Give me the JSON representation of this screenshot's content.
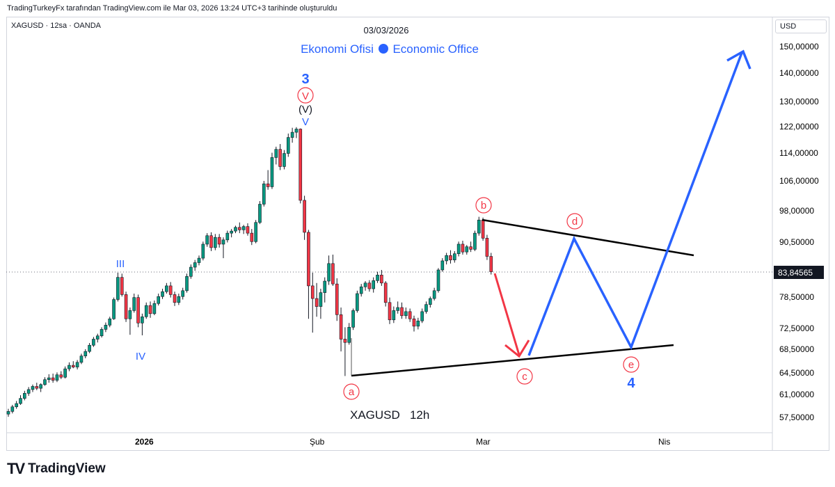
{
  "header": {
    "attribution": "TradingTurkeyFx tarafından TradingView.com ile Mar 03, 2026 13:24 UTC+3 tarihinde oluşturuldu",
    "symbol_line": "XAGUSD · 12sa · OANDA",
    "date": "03/03/2026",
    "brand_left": "Ekonomi Ofisi",
    "brand_right": "Economic Office"
  },
  "price_axis": {
    "currency": "USD",
    "ticks": [
      "150,00000",
      "140,00000",
      "130,00000",
      "122,00000",
      "114,00000",
      "106,00000",
      "98,00000",
      "90,50000",
      "78,50000",
      "72,50000",
      "68,50000",
      "64,50000",
      "61,00000",
      "57,50000"
    ],
    "current_price": "83,84565"
  },
  "time_axis": {
    "ticks": [
      "2026",
      "Şub",
      "Mar",
      "Nis"
    ]
  },
  "footer": {
    "logo_mark": "TV",
    "logo_text": "TradingView"
  },
  "chart_label": "XAGUSD   12h",
  "wave_labels": {
    "w3": "3",
    "w4": "4",
    "v_circle": "V",
    "v_paren": "(V)",
    "v_plain": "V",
    "iii": "III",
    "iv": "IV",
    "a": "a",
    "b": "b",
    "c": "c",
    "d": "d",
    "e": "e"
  },
  "colors": {
    "up": "#089981",
    "down": "#f23645",
    "projection_up": "#2962ff",
    "projection_down": "#f23645",
    "trendline": "#000000",
    "labels_blue": "#2962ff",
    "labels_red": "#f23645"
  },
  "chart_data": {
    "type": "candlestick",
    "symbol": "XAGUSD",
    "timeframe": "12h",
    "y_scale": "log",
    "ylim": [
      55.5,
      158
    ],
    "current_price": 83.84565,
    "ohlc": [
      [
        58.0,
        58.8,
        57.6,
        58.4
      ],
      [
        58.4,
        59.4,
        58.1,
        59.1
      ],
      [
        59.1,
        60.0,
        58.8,
        59.6
      ],
      [
        59.6,
        60.9,
        59.4,
        60.4
      ],
      [
        60.4,
        61.6,
        60.1,
        61.2
      ],
      [
        61.2,
        62.2,
        60.8,
        61.8
      ],
      [
        61.8,
        62.6,
        61.4,
        62.3
      ],
      [
        62.3,
        62.9,
        61.7,
        62.0
      ],
      [
        62.0,
        62.8,
        61.4,
        62.6
      ],
      [
        62.6,
        63.8,
        62.4,
        63.4
      ],
      [
        63.4,
        64.3,
        62.9,
        63.7
      ],
      [
        63.7,
        64.4,
        62.9,
        63.3
      ],
      [
        63.3,
        64.6,
        63.0,
        64.2
      ],
      [
        64.2,
        64.8,
        63.5,
        63.8
      ],
      [
        63.8,
        65.6,
        63.6,
        65.2
      ],
      [
        65.2,
        66.3,
        64.8,
        65.8
      ],
      [
        65.8,
        66.5,
        65.3,
        65.5
      ],
      [
        65.5,
        66.7,
        65.1,
        66.3
      ],
      [
        66.3,
        67.8,
        66.0,
        67.4
      ],
      [
        67.4,
        68.6,
        67.0,
        68.2
      ],
      [
        68.2,
        69.7,
        67.9,
        69.3
      ],
      [
        69.3,
        70.8,
        69.0,
        70.4
      ],
      [
        70.4,
        71.4,
        69.8,
        71.0
      ],
      [
        71.0,
        72.6,
        70.7,
        72.2
      ],
      [
        72.2,
        73.5,
        71.7,
        73.0
      ],
      [
        73.0,
        74.6,
        72.6,
        74.2
      ],
      [
        74.2,
        78.4,
        74.0,
        78.0
      ],
      [
        78.0,
        83.6,
        77.6,
        82.6
      ],
      [
        82.6,
        83.4,
        78.6,
        79.0
      ],
      [
        79.0,
        79.6,
        73.6,
        74.2
      ],
      [
        74.2,
        76.4,
        71.2,
        75.8
      ],
      [
        75.8,
        79.2,
        75.4,
        78.4
      ],
      [
        78.4,
        79.0,
        72.6,
        73.4
      ],
      [
        73.4,
        75.2,
        71.1,
        74.6
      ],
      [
        74.6,
        77.4,
        74.2,
        76.8
      ],
      [
        76.8,
        77.6,
        74.4,
        75.2
      ],
      [
        75.2,
        77.8,
        74.9,
        77.2
      ],
      [
        77.2,
        79.2,
        76.8,
        78.6
      ],
      [
        78.6,
        80.2,
        78.1,
        79.6
      ],
      [
        79.6,
        81.4,
        79.2,
        80.8
      ],
      [
        80.8,
        81.6,
        78.4,
        79.0
      ],
      [
        79.0,
        79.6,
        76.7,
        77.4
      ],
      [
        77.4,
        79.2,
        76.9,
        78.6
      ],
      [
        78.6,
        80.4,
        78.0,
        79.8
      ],
      [
        79.8,
        83.4,
        79.4,
        82.8
      ],
      [
        82.8,
        85.4,
        82.3,
        84.8
      ],
      [
        84.8,
        86.4,
        84.0,
        85.8
      ],
      [
        85.8,
        87.4,
        85.2,
        86.8
      ],
      [
        86.8,
        90.6,
        86.3,
        90.0
      ],
      [
        90.0,
        92.6,
        89.4,
        92.0
      ],
      [
        92.0,
        92.8,
        88.4,
        89.2
      ],
      [
        89.2,
        92.4,
        88.6,
        91.6
      ],
      [
        91.6,
        92.4,
        89.2,
        90.0
      ],
      [
        90.0,
        91.6,
        86.8,
        91.0
      ],
      [
        91.0,
        93.2,
        90.4,
        92.6
      ],
      [
        92.6,
        93.6,
        91.6,
        93.1
      ],
      [
        93.1,
        94.4,
        92.6,
        94.0
      ],
      [
        94.0,
        95.2,
        92.6,
        93.4
      ],
      [
        93.4,
        94.6,
        92.4,
        94.2
      ],
      [
        94.2,
        95.0,
        92.0,
        92.6
      ],
      [
        92.6,
        93.6,
        89.8,
        90.6
      ],
      [
        90.6,
        95.8,
        90.2,
        95.2
      ],
      [
        95.2,
        100.6,
        94.8,
        99.8
      ],
      [
        99.8,
        106.0,
        99.2,
        105.2
      ],
      [
        105.2,
        109.0,
        103.6,
        104.4
      ],
      [
        104.4,
        114.0,
        103.8,
        112.6
      ],
      [
        112.6,
        115.8,
        110.6,
        115.0
      ],
      [
        115.0,
        116.6,
        109.0,
        110.0
      ],
      [
        110.0,
        114.8,
        109.2,
        113.8
      ],
      [
        113.8,
        119.8,
        112.8,
        118.6
      ],
      [
        118.6,
        121.6,
        117.0,
        120.2
      ],
      [
        120.2,
        121.8,
        118.4,
        121.2
      ],
      [
        121.2,
        121.4,
        100.0,
        100.8
      ],
      [
        100.8,
        102.0,
        91.0,
        92.8
      ],
      [
        92.8,
        93.4,
        74.2,
        80.8
      ],
      [
        80.8,
        83.6,
        71.6,
        78.2
      ],
      [
        78.2,
        81.4,
        74.6,
        76.6
      ],
      [
        76.6,
        80.2,
        74.2,
        79.4
      ],
      [
        79.4,
        82.6,
        77.4,
        81.8
      ],
      [
        81.8,
        87.4,
        81.0,
        85.6
      ],
      [
        85.6,
        87.6,
        80.8,
        81.2
      ],
      [
        81.2,
        82.4,
        73.8,
        75.0
      ],
      [
        75.0,
        76.4,
        68.2,
        70.4
      ],
      [
        70.4,
        72.6,
        64.0,
        69.8
      ],
      [
        69.8,
        73.4,
        69.4,
        72.6
      ],
      [
        72.6,
        76.2,
        72.1,
        75.8
      ],
      [
        75.8,
        79.8,
        75.4,
        79.2
      ],
      [
        79.2,
        81.2,
        78.6,
        80.6
      ],
      [
        80.6,
        81.8,
        79.8,
        81.4
      ],
      [
        81.4,
        82.0,
        79.6,
        80.2
      ],
      [
        80.2,
        82.6,
        79.4,
        81.9
      ],
      [
        81.9,
        83.8,
        81.4,
        83.1
      ],
      [
        83.1,
        84.2,
        80.8,
        81.4
      ],
      [
        81.4,
        81.8,
        76.6,
        77.4
      ],
      [
        77.4,
        78.4,
        73.2,
        74.0
      ],
      [
        74.0,
        76.6,
        73.4,
        75.8
      ],
      [
        75.8,
        77.6,
        75.2,
        76.4
      ],
      [
        76.4,
        77.4,
        74.2,
        74.8
      ],
      [
        74.8,
        76.4,
        74.2,
        75.6
      ],
      [
        75.6,
        76.2,
        73.6,
        74.2
      ],
      [
        74.2,
        74.8,
        71.8,
        72.8
      ],
      [
        72.8,
        74.4,
        72.2,
        73.8
      ],
      [
        73.8,
        76.2,
        73.4,
        75.6
      ],
      [
        75.6,
        77.6,
        75.2,
        77.0
      ],
      [
        77.0,
        78.6,
        76.4,
        78.2
      ],
      [
        78.2,
        80.4,
        77.8,
        79.8
      ],
      [
        79.8,
        84.6,
        79.4,
        84.2
      ],
      [
        84.2,
        86.8,
        83.8,
        86.2
      ],
      [
        86.2,
        88.0,
        85.4,
        87.4
      ],
      [
        87.4,
        88.6,
        85.6,
        86.4
      ],
      [
        86.4,
        88.4,
        85.8,
        87.8
      ],
      [
        87.8,
        90.6,
        87.2,
        90.0
      ],
      [
        90.0,
        90.8,
        87.6,
        88.2
      ],
      [
        88.2,
        89.8,
        87.6,
        89.4
      ],
      [
        89.4,
        90.6,
        88.2,
        88.8
      ],
      [
        88.8,
        93.2,
        88.4,
        92.6
      ],
      [
        92.6,
        96.6,
        92.0,
        95.8
      ],
      [
        95.8,
        96.4,
        90.8,
        91.4
      ],
      [
        91.4,
        92.2,
        86.4,
        87.2
      ],
      [
        87.2,
        88.0,
        83.2,
        83.8
      ]
    ],
    "waves": [
      {
        "label": "III",
        "price": 82.6
      },
      {
        "label": "IV",
        "price": 71.2
      },
      {
        "label": "V / (V) / 3",
        "price": 121.8
      },
      {
        "label": "a",
        "price": 64.0
      },
      {
        "label": "b",
        "price": 96.6
      },
      {
        "label": "c",
        "price": 67.3
      },
      {
        "label": "d",
        "price": 91.2
      },
      {
        "label": "e",
        "price": 69.1
      },
      {
        "label": "target",
        "price": 148.0
      }
    ],
    "grid": false
  }
}
